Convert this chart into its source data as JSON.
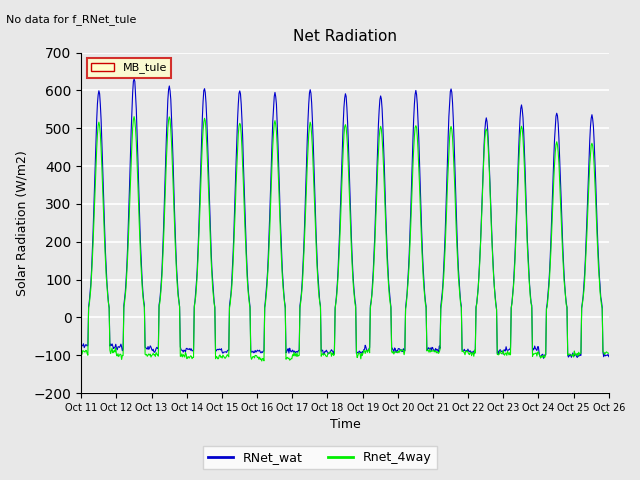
{
  "title": "Net Radiation",
  "no_data_text": "No data for f_RNet_tule",
  "ylabel": "Solar Radiation (W/m2)",
  "xlabel": "Time",
  "ylim": [
    -200,
    700
  ],
  "xlim": [
    0,
    375
  ],
  "yticks": [
    -200,
    -100,
    0,
    100,
    200,
    300,
    400,
    500,
    600,
    700
  ],
  "xtick_labels": [
    "Oct 11",
    "Oct 12",
    "Oct 13",
    "Oct 14",
    "Oct 15",
    "Oct 16",
    "Oct 17",
    "Oct 18",
    "Oct 19",
    "Oct 20",
    "Oct 21",
    "Oct 22",
    "Oct 23",
    "Oct 24",
    "Oct 25",
    "Oct 26"
  ],
  "xtick_positions": [
    0,
    25,
    50,
    75,
    100,
    125,
    150,
    175,
    200,
    225,
    250,
    275,
    300,
    325,
    350,
    375
  ],
  "bg_color": "#e8e8e8",
  "plot_bg_color": "#e8e8e8",
  "grid_color": "white",
  "line1_color": "#0000cc",
  "line2_color": "#00ee00",
  "line1_label": "RNet_wat",
  "line2_label": "Rnet_4way",
  "legend_label": "MB_tule",
  "legend_bg": "#ffffcc",
  "legend_edge": "#cc0000",
  "n_days": 15,
  "night_val": -75,
  "peaks_blue": [
    600,
    630,
    610,
    605,
    600,
    595,
    600,
    590,
    585,
    600,
    605,
    525,
    560,
    540,
    535
  ],
  "peaks_green": [
    515,
    530,
    530,
    525,
    515,
    520,
    515,
    510,
    505,
    510,
    505,
    500,
    505,
    465,
    460
  ],
  "night_blue": [
    -75,
    -80,
    -85,
    -85,
    -90,
    -90,
    -90,
    -90,
    -85,
    -85,
    -85,
    -90,
    -85,
    -100,
    -100
  ],
  "night_green": [
    -90,
    -100,
    -100,
    -105,
    -105,
    -110,
    -100,
    -95,
    -90,
    -90,
    -90,
    -95,
    -95,
    -100,
    -95
  ]
}
